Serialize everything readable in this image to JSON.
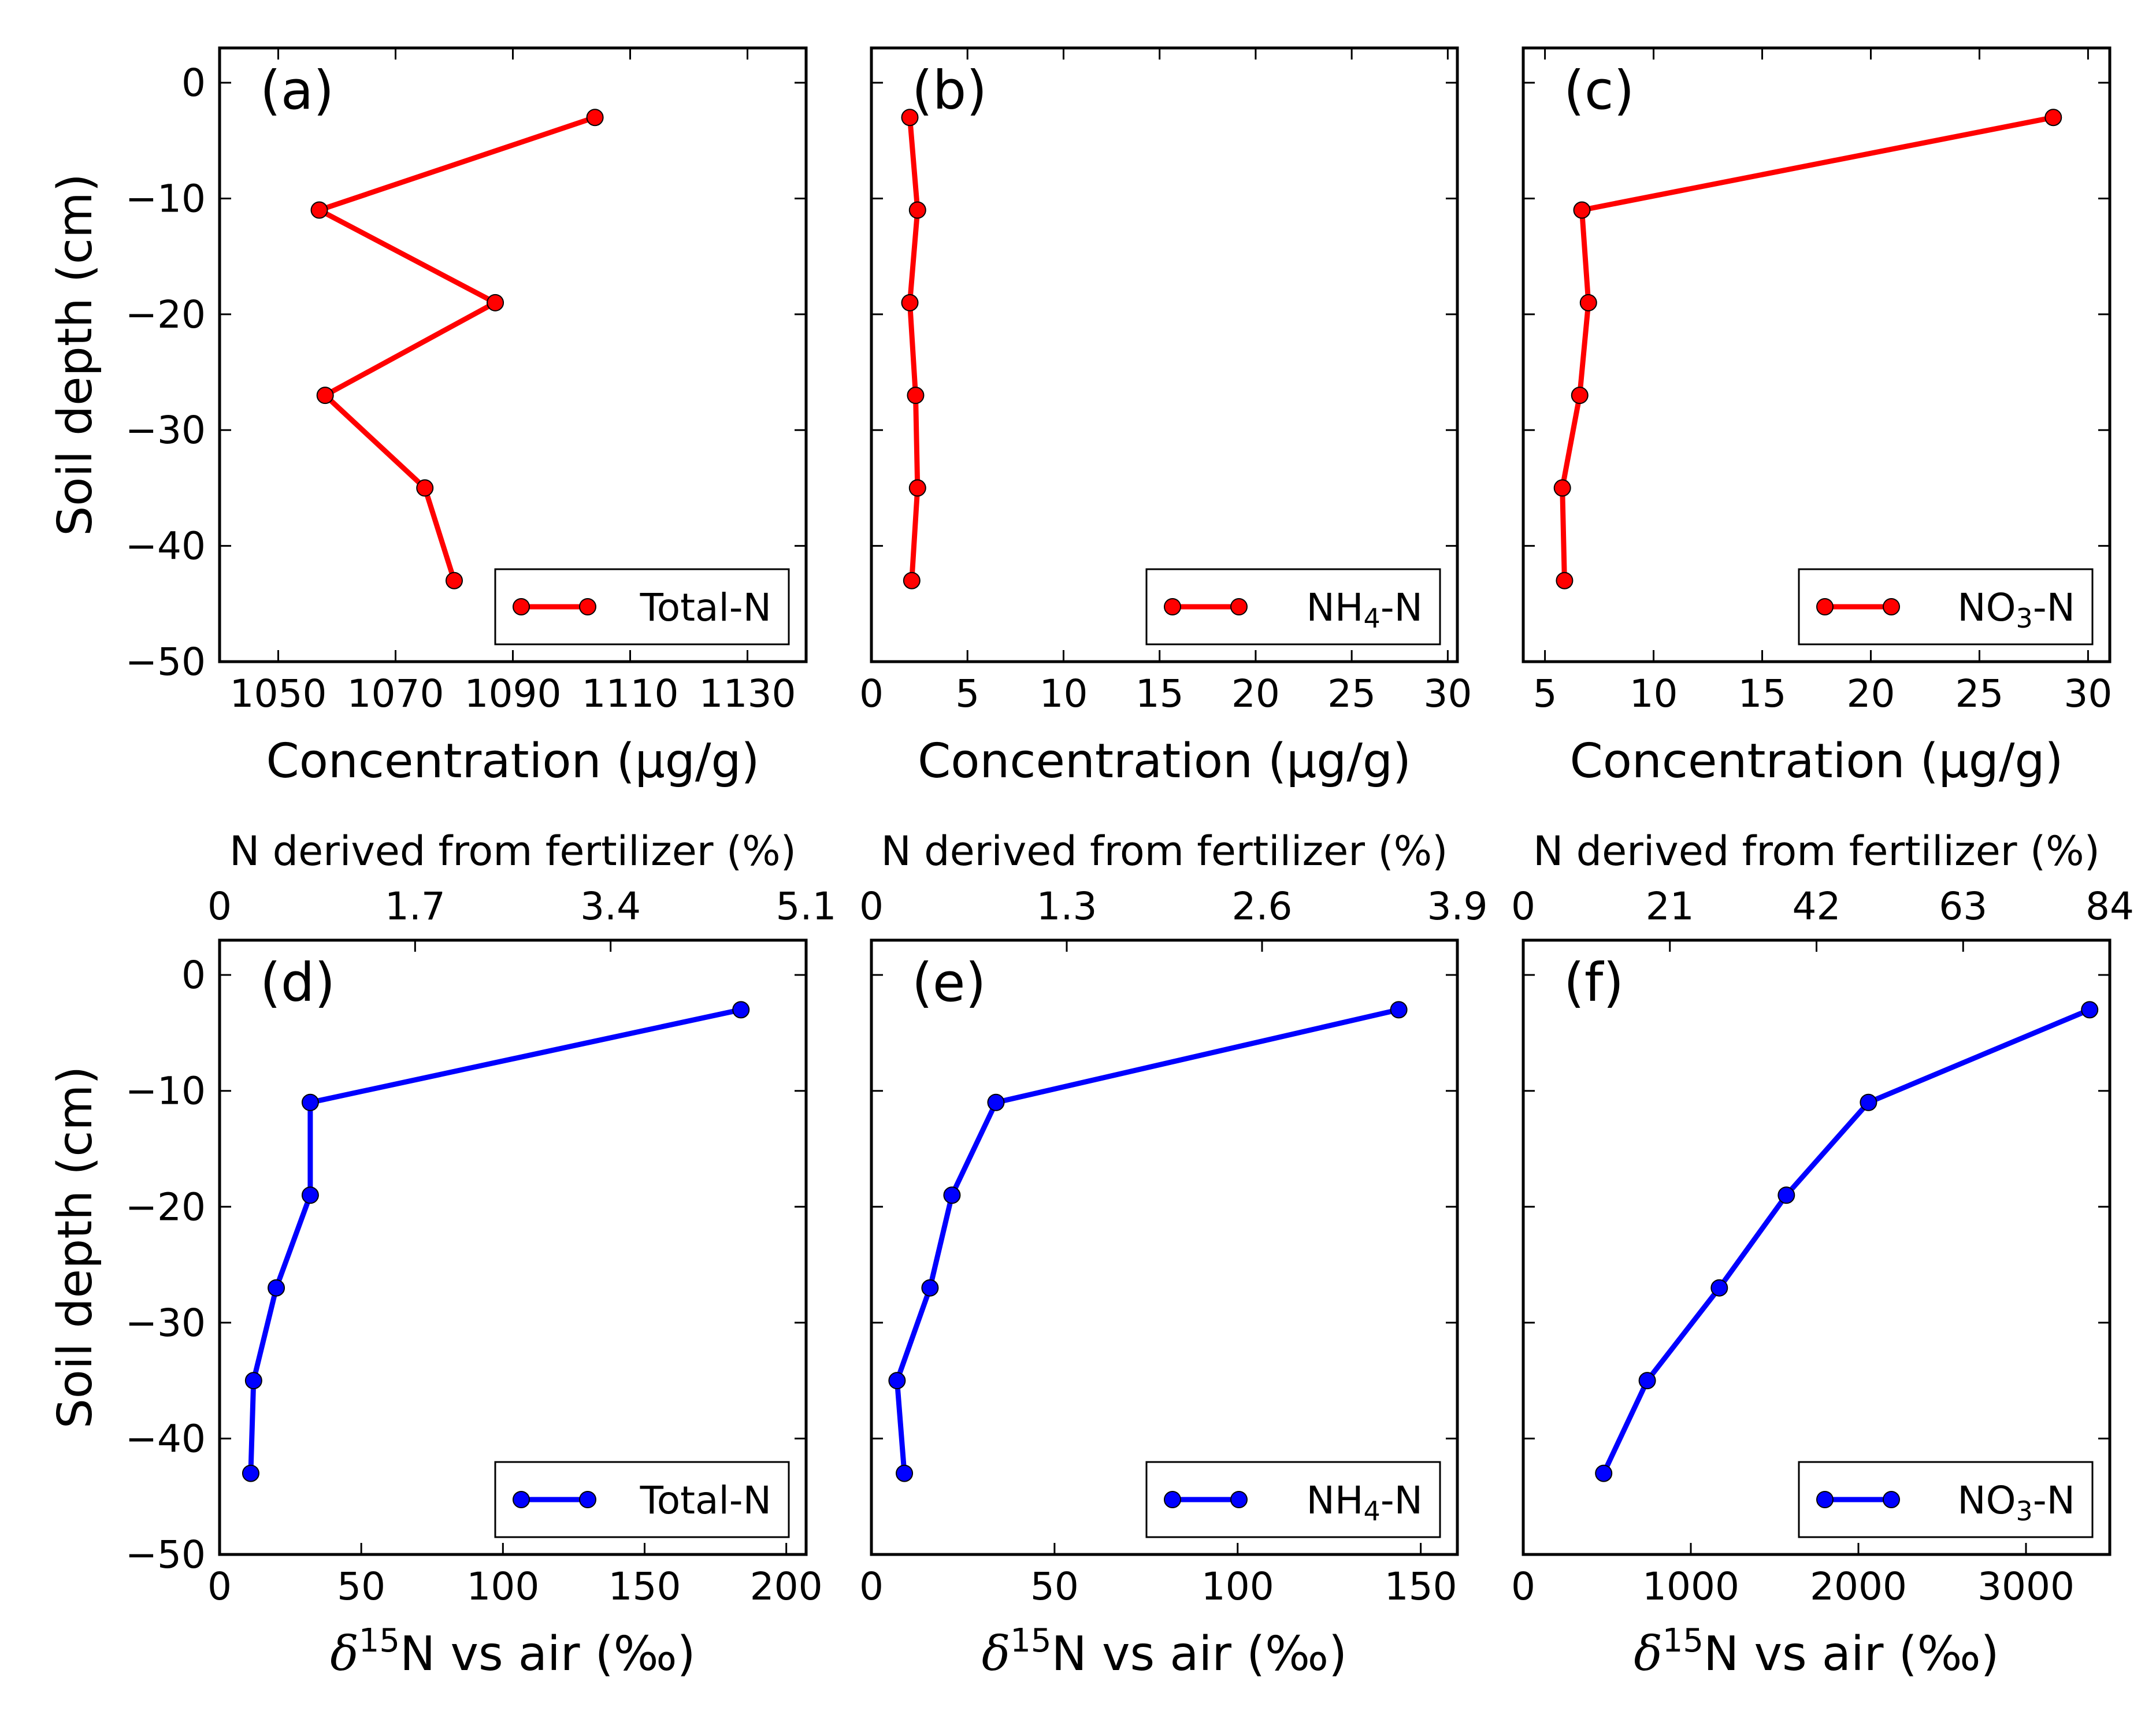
{
  "figure": {
    "y_axis_label": "Soil depth (cm)",
    "top_axis_label": "N derived from fertilizer (%)",
    "conc_xlabel": "Concentration (µg/g)",
    "delta_xlabel_sym": "δ",
    "delta_xlabel_sup": "15",
    "delta_xlabel_rest": "N vs air (‰)",
    "red": "#ff0000",
    "blue": "#0000ff"
  },
  "chart_data": [
    {
      "type": "line",
      "panel": "(a)",
      "legend": "Total-N",
      "color": "#ff0000",
      "xlabel": "Concentration (µg/g)",
      "ylabel": "Soil depth (cm)",
      "xlim": [
        1040,
        1140
      ],
      "ylim": [
        -50,
        3
      ],
      "xticks": [
        1050,
        1070,
        1090,
        1110,
        1130
      ],
      "yticks": [
        0,
        -10,
        -20,
        -30,
        -40,
        -50
      ],
      "x": [
        1104,
        1057,
        1087,
        1058,
        1075,
        1080
      ],
      "y": [
        -3,
        -11,
        -19,
        -27,
        -35,
        -43
      ]
    },
    {
      "type": "line",
      "panel": "(b)",
      "legend": "NH4-N",
      "legend_base": "NH",
      "legend_sub": "4",
      "legend_tail": "-N",
      "color": "#ff0000",
      "xlabel": "Concentration (µg/g)",
      "ylabel": "Soil depth (cm)",
      "xlim": [
        0,
        30.5
      ],
      "ylim": [
        -50,
        3
      ],
      "xticks": [
        0,
        5,
        10,
        15,
        20,
        25,
        30
      ],
      "yticks": [
        0,
        -10,
        -20,
        -30,
        -40,
        -50
      ],
      "x": [
        2.0,
        2.4,
        2.0,
        2.3,
        2.4,
        2.1
      ],
      "y": [
        -3,
        -11,
        -19,
        -27,
        -35,
        -43
      ]
    },
    {
      "type": "line",
      "panel": "(c)",
      "legend": "NO3-N",
      "legend_base": "NO",
      "legend_sub": "3",
      "legend_tail": "-N",
      "color": "#ff0000",
      "xlabel": "Concentration (µg/g)",
      "ylabel": "Soil depth (cm)",
      "xlim": [
        4,
        31
      ],
      "ylim": [
        -50,
        3
      ],
      "xticks": [
        5,
        10,
        15,
        20,
        25,
        30
      ],
      "yticks": [
        0,
        -10,
        -20,
        -30,
        -40,
        -50
      ],
      "x": [
        28.4,
        6.7,
        7.0,
        6.6,
        5.8,
        5.9
      ],
      "y": [
        -3,
        -11,
        -19,
        -27,
        -35,
        -43
      ]
    },
    {
      "type": "line",
      "panel": "(d)",
      "legend": "Total-N",
      "color": "#0000ff",
      "xlabel": "δ15N vs air (‰)",
      "ylabel": "Soil depth (cm)",
      "top_xlabel": "N derived from fertilizer (%)",
      "top_xticks": [
        "0",
        "1.7",
        "3.4",
        "5.1"
      ],
      "xlim": [
        0,
        207
      ],
      "ylim": [
        -50,
        3
      ],
      "xticks": [
        0,
        50,
        100,
        150,
        200
      ],
      "yticks": [
        0,
        -10,
        -20,
        -30,
        -40,
        -50
      ],
      "x": [
        184,
        32,
        32,
        20,
        12,
        11
      ],
      "y": [
        -3,
        -11,
        -19,
        -27,
        -35,
        -43
      ]
    },
    {
      "type": "line",
      "panel": "(e)",
      "legend": "NH4-N",
      "legend_base": "NH",
      "legend_sub": "4",
      "legend_tail": "-N",
      "color": "#0000ff",
      "xlabel": "δ15N vs air (‰)",
      "ylabel": "Soil depth (cm)",
      "top_xlabel": "N derived from fertilizer (%)",
      "top_xticks": [
        "0",
        "1.3",
        "2.6",
        "3.9"
      ],
      "xlim": [
        0,
        160
      ],
      "ylim": [
        -50,
        3
      ],
      "xticks": [
        0,
        50,
        100,
        150
      ],
      "yticks": [
        0,
        -10,
        -20,
        -30,
        -40,
        -50
      ],
      "x": [
        144,
        34,
        22,
        16,
        7,
        9
      ],
      "y": [
        -3,
        -11,
        -19,
        -27,
        -35,
        -43
      ]
    },
    {
      "type": "line",
      "panel": "(f)",
      "legend": "NO3-N",
      "legend_base": "NO",
      "legend_sub": "3",
      "legend_tail": "-N",
      "color": "#0000ff",
      "xlabel": "δ15N vs air (‰)",
      "ylabel": "Soil depth (cm)",
      "top_xlabel": "N derived from fertilizer (%)",
      "top_xticks": [
        "0",
        "21",
        "42",
        "63",
        "84"
      ],
      "xlim": [
        0,
        3500
      ],
      "ylim": [
        -50,
        3
      ],
      "xticks": [
        0,
        1000,
        2000,
        3000
      ],
      "yticks": [
        0,
        -10,
        -20,
        -30,
        -40,
        -50
      ],
      "x": [
        3380,
        2060,
        1570,
        1170,
        740,
        480
      ],
      "y": [
        -3,
        -11,
        -19,
        -27,
        -35,
        -43
      ]
    }
  ]
}
